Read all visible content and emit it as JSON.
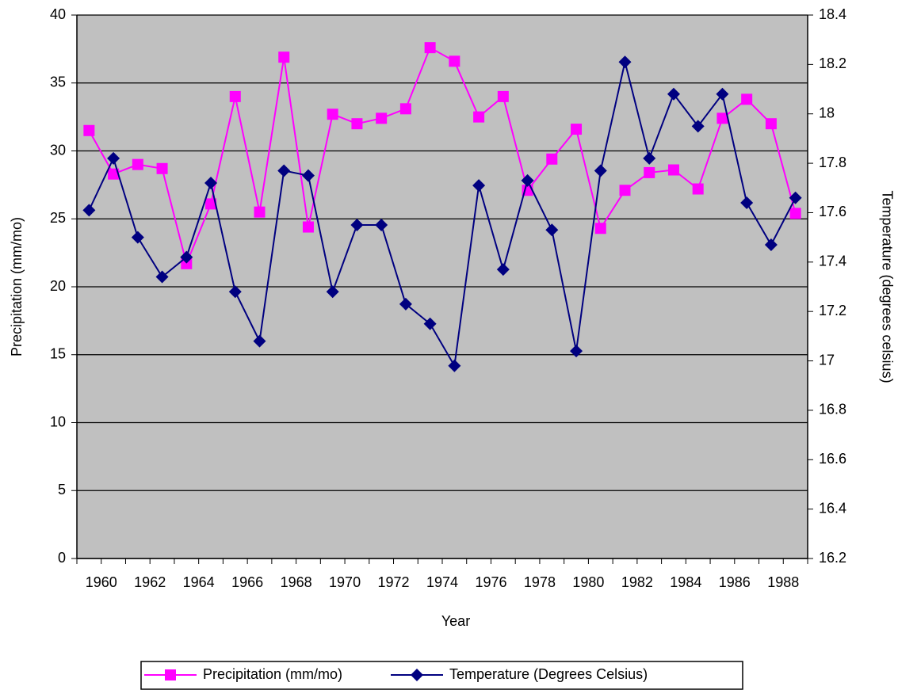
{
  "chart_data": {
    "type": "line",
    "x_label": "Year",
    "y_label": "Precipitation (mm/mo)",
    "y2_label": "Temperature (degrees celsius)",
    "categories": [
      "1960",
      null,
      "1962",
      null,
      "1964",
      null,
      "1966",
      null,
      "1968",
      null,
      "1970",
      null,
      "1972",
      null,
      "1974",
      null,
      "1976",
      null,
      "1978",
      null,
      "1980",
      null,
      "1982",
      null,
      "1984",
      null,
      "1986",
      null,
      "1988",
      null
    ],
    "series": [
      {
        "name": "Precipitation (mm/mo)",
        "color": "#ff00ff",
        "marker": "square",
        "values": [
          31.5,
          28.3,
          29.0,
          28.7,
          21.7,
          26.1,
          34.0,
          25.5,
          36.9,
          24.4,
          32.7,
          32.0,
          32.4,
          33.1,
          37.6,
          36.6,
          32.5,
          34.0,
          27.1,
          29.4,
          31.6,
          24.3,
          27.1,
          28.4,
          28.6,
          27.2,
          32.4,
          33.8,
          32.0,
          25.4
        ]
      },
      {
        "name": "Temperature (Degrees Celsius)",
        "color": "#000080",
        "marker": "diamond",
        "axis": "y2",
        "values": [
          17.61,
          17.82,
          17.5,
          17.34,
          17.42,
          17.72,
          17.28,
          17.08,
          17.77,
          17.75,
          17.28,
          17.55,
          17.55,
          17.23,
          17.15,
          16.98,
          17.71,
          17.37,
          17.73,
          17.53,
          17.04,
          17.77,
          18.21,
          17.82,
          18.08,
          17.95,
          18.08,
          17.64,
          17.47,
          17.66
        ]
      }
    ],
    "ylim": [
      0,
      40
    ],
    "yticks": [
      0,
      5,
      10,
      15,
      20,
      25,
      30,
      35,
      40
    ],
    "y2lim": [
      16.2,
      18.4
    ],
    "y2ticks": [
      16.2,
      16.4,
      16.6,
      16.8,
      17,
      17.2,
      17.4,
      17.6,
      17.8,
      18,
      18.2,
      18.4
    ],
    "grid": true
  }
}
